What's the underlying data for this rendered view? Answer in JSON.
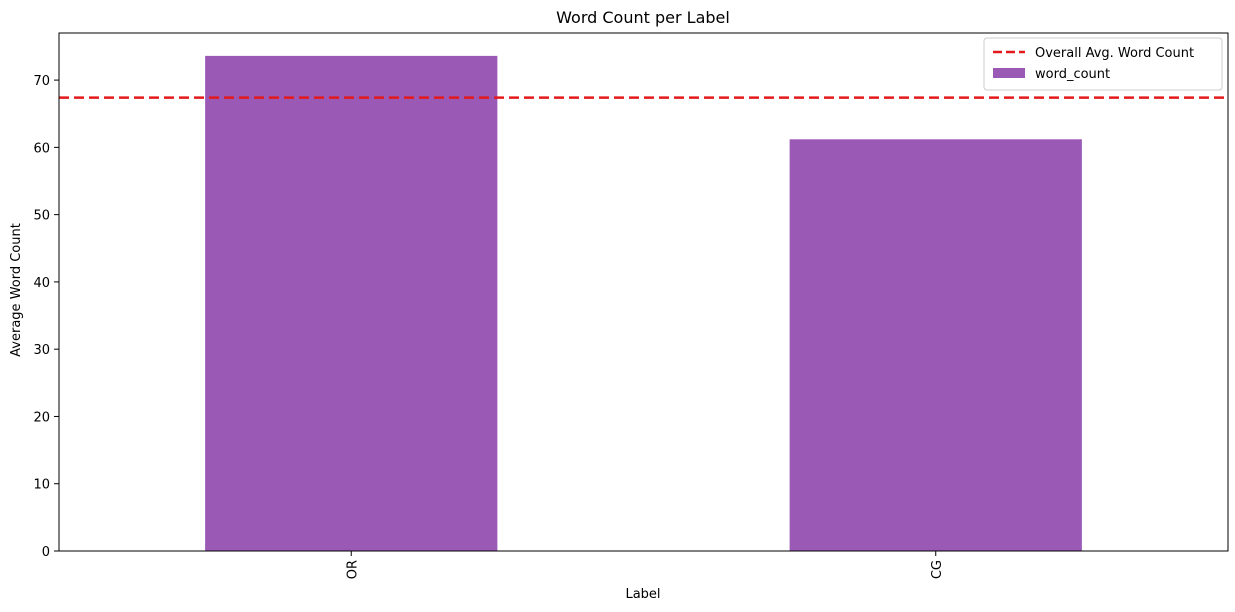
{
  "chart_data": {
    "type": "bar",
    "title": "Word Count per Label",
    "xlabel": "Label",
    "ylabel": "Average Word Count",
    "categories": [
      "OR",
      "CG"
    ],
    "series": [
      {
        "name": "word_count",
        "values": [
          73.6,
          61.2
        ],
        "color": "#9b59b6"
      }
    ],
    "reference_line": {
      "name": "Overall Avg. Word Count",
      "value": 67.4,
      "color": "#e31a1c",
      "style": "dashed"
    },
    "ylim": [
      0,
      77
    ],
    "yticks": [
      0,
      10,
      20,
      30,
      40,
      50,
      60,
      70
    ],
    "grid": false,
    "legend_position": "top-right",
    "x_tick_rotation": "vertical"
  }
}
